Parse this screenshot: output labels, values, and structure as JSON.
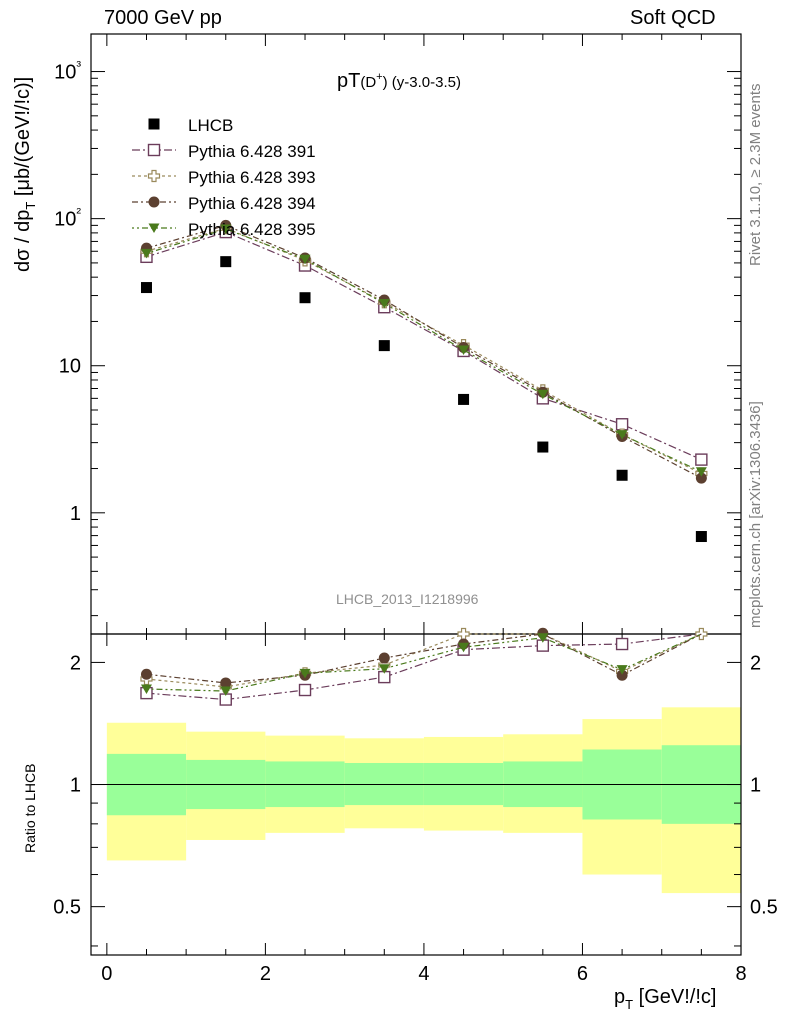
{
  "header": {
    "left": "7000 GeV pp",
    "right": "Soft QCD"
  },
  "side": {
    "rivet": "Rivet 3.1.10, ≥ 2.3M events",
    "mcplots": "mcplots.cern.ch [arXiv:1306.3436]"
  },
  "plot_title": {
    "main": "pT",
    "paren_open": "(D",
    "sup": "+",
    "paren_close": ")",
    "range": " (y-3.0-3.5)"
  },
  "axes": {
    "ylabel_main_pre": "dσ / dp",
    "ylabel_main_sub": "T",
    "ylabel_main_post": " [μb/(GeV!/!c)]",
    "ylabel_ratio": "Ratio to LHCB",
    "xlabel_pre": "p",
    "xlabel_sub": "T",
    "xlabel_post": " [GeV!/!c]"
  },
  "watermark": "LHCB_2013_I1218996",
  "colors": {
    "data": "#000000",
    "py391": "#6b3d5b",
    "py393": "#9a8a5c",
    "py394": "#5c4030",
    "py395": "#4a7a1c",
    "band_inner": "#99ff99",
    "band_outer": "#ffff99"
  },
  "chart_data": [
    {
      "type": "scatter",
      "panel": "main",
      "yscale": "log",
      "xlim": [
        -0.2,
        8.0
      ],
      "ylim": [
        0.15,
        1800
      ],
      "x_ticks": [
        0,
        2,
        4,
        6,
        8
      ],
      "y_tick_labels": [
        "1",
        "10",
        "10²",
        "10³"
      ],
      "x": [
        0.5,
        1.5,
        2.5,
        3.5,
        4.5,
        5.5,
        6.5,
        7.5
      ],
      "series": [
        {
          "name": "LHCB",
          "marker": "filled-square",
          "values": [
            34,
            51,
            29,
            13.7,
            5.9,
            2.8,
            1.8,
            0.69
          ]
        },
        {
          "name": "Pythia 6.428 391",
          "marker": "open-square",
          "values": [
            55,
            81,
            48,
            25,
            12.6,
            6.0,
            4.0,
            2.3
          ]
        },
        {
          "name": "Pythia 6.428 393",
          "marker": "open-cross",
          "values": [
            60,
            86,
            52,
            27,
            13.8,
            6.8,
            3.4,
            1.85
          ]
        },
        {
          "name": "Pythia 6.428 394",
          "marker": "filled-circle",
          "values": [
            63,
            90,
            54,
            28,
            13.3,
            6.6,
            3.3,
            1.72
          ]
        },
        {
          "name": "Pythia 6.428 395",
          "marker": "filled-triangle-down",
          "values": [
            58,
            85,
            53,
            26.5,
            12.8,
            6.4,
            3.4,
            1.9
          ]
        }
      ]
    },
    {
      "type": "scatter",
      "panel": "ratio",
      "yscale": "log",
      "ylabel": "Ratio to LHCB",
      "xlim": [
        -0.2,
        8.0
      ],
      "ylim": [
        0.38,
        2.35
      ],
      "y_ticks": [
        0.5,
        1,
        2
      ],
      "y_tick_labels": [
        "0.5",
        "1",
        "2"
      ],
      "x": [
        0.5,
        1.5,
        2.5,
        3.5,
        4.5,
        5.5,
        6.5,
        7.5
      ],
      "bands": {
        "edges": [
          0,
          1,
          2,
          3,
          4,
          5,
          6,
          7,
          8
        ],
        "inner_low": [
          0.84,
          0.87,
          0.88,
          0.89,
          0.89,
          0.88,
          0.82,
          0.8
        ],
        "inner_high": [
          1.19,
          1.15,
          1.14,
          1.13,
          1.13,
          1.14,
          1.22,
          1.25
        ],
        "outer_low": [
          0.65,
          0.73,
          0.76,
          0.78,
          0.77,
          0.76,
          0.6,
          0.54
        ],
        "outer_high": [
          1.42,
          1.35,
          1.32,
          1.3,
          1.31,
          1.33,
          1.45,
          1.55
        ]
      },
      "series": [
        {
          "name": "Pythia 6.428 391",
          "values": [
            1.68,
            1.62,
            1.71,
            1.84,
            2.15,
            2.2,
            2.22,
            2.4
          ]
        },
        {
          "name": "Pythia 6.428 393",
          "values": [
            1.82,
            1.74,
            1.88,
            1.97,
            2.35,
            2.4,
            1.9,
            2.35
          ]
        },
        {
          "name": "Pythia 6.428 394",
          "values": [
            1.87,
            1.78,
            1.86,
            2.05,
            2.22,
            2.36,
            1.86,
            2.42
          ]
        },
        {
          "name": "Pythia 6.428 395",
          "values": [
            1.72,
            1.7,
            1.88,
            1.93,
            2.18,
            2.3,
            1.92,
            2.46
          ]
        }
      ]
    }
  ]
}
